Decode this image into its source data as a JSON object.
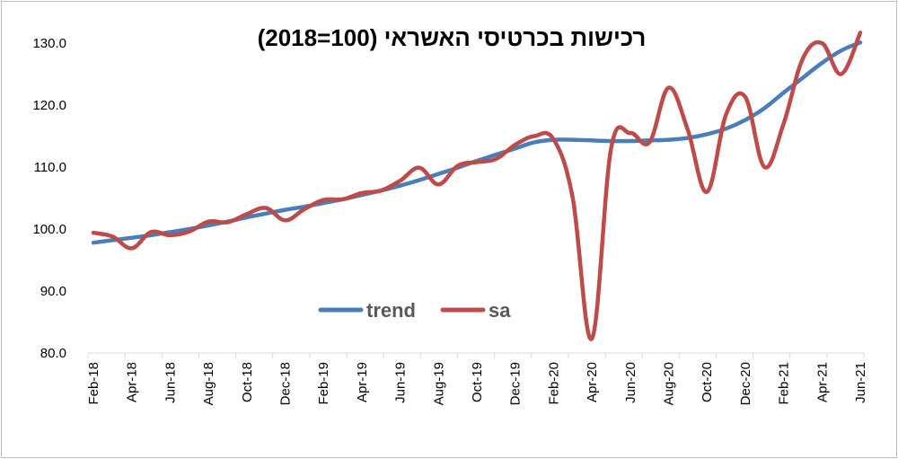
{
  "chart_data": {
    "type": "line",
    "title": "רכישות בכרטיסי האשראי (100=2018)",
    "xlabel": "",
    "ylabel": "",
    "ylim": [
      80,
      130
    ],
    "yticks": [
      "80.0",
      "90.0",
      "100.0",
      "110.0",
      "120.0",
      "130.0"
    ],
    "x": [
      "Feb-18",
      "Mar-18",
      "Apr-18",
      "May-18",
      "Jun-18",
      "Jul-18",
      "Aug-18",
      "Sep-18",
      "Oct-18",
      "Nov-18",
      "Dec-18",
      "Jan-19",
      "Feb-19",
      "Mar-19",
      "Apr-19",
      "May-19",
      "Jun-19",
      "Jul-19",
      "Aug-19",
      "Sep-19",
      "Oct-19",
      "Nov-19",
      "Dec-19",
      "Jan-20",
      "Feb-20",
      "Mar-20",
      "Apr-20",
      "May-20",
      "Jun-20",
      "Jul-20",
      "Aug-20",
      "Sep-20",
      "Oct-20",
      "Nov-20",
      "Dec-20",
      "Jan-21",
      "Feb-21",
      "Mar-21",
      "Apr-21",
      "May-21",
      "Jun-21"
    ],
    "x_tick_labels": [
      "Feb-18",
      "Apr-18",
      "Jun-18",
      "Aug-18",
      "Oct-18",
      "Dec-18",
      "Feb-19",
      "Apr-19",
      "Jun-19",
      "Aug-19",
      "Oct-19",
      "Dec-19",
      "Feb-20",
      "Apr-20",
      "Jun-20",
      "Aug-20",
      "Oct-20",
      "Dec-20",
      "Feb-21",
      "Apr-21",
      "Jun-21"
    ],
    "series": [
      {
        "name": "trend",
        "color": "#4a7ebb",
        "values": [
          97.8,
          98.2,
          98.6,
          99.0,
          99.5,
          100.0,
          100.6,
          101.2,
          101.9,
          102.5,
          103.1,
          103.6,
          104.2,
          104.8,
          105.5,
          106.2,
          107.0,
          107.9,
          108.9,
          109.9,
          111.0,
          112.0,
          113.0,
          114.0,
          114.4,
          114.4,
          114.3,
          114.2,
          114.2,
          114.3,
          114.4,
          114.7,
          115.3,
          116.2,
          117.6,
          119.5,
          122.0,
          124.4,
          126.8,
          128.8,
          130.1
        ]
      },
      {
        "name": "sa",
        "color": "#be4b48",
        "values": [
          99.4,
          98.8,
          96.9,
          99.5,
          99.0,
          99.6,
          101.2,
          101.1,
          102.4,
          103.4,
          101.4,
          103.2,
          104.7,
          104.8,
          105.8,
          106.2,
          107.8,
          109.9,
          107.2,
          110.2,
          110.8,
          111.3,
          113.6,
          115.0,
          114.5,
          105.0,
          82.3,
          113.0,
          115.5,
          114.0,
          122.8,
          116.0,
          106.0,
          118.5,
          121.3,
          110.0,
          117.0,
          127.5,
          130.0,
          125.0,
          131.7
        ]
      }
    ],
    "legend": "center",
    "grid": false
  }
}
